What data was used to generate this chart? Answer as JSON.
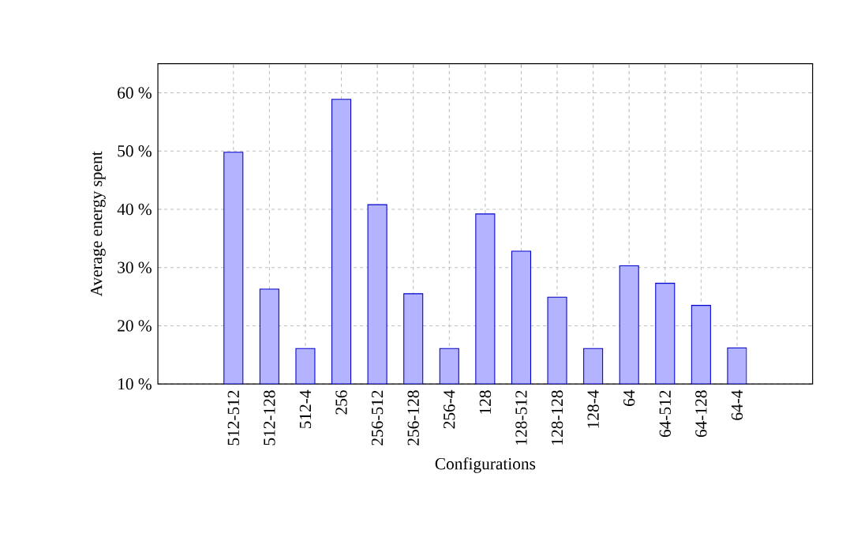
{
  "chart_data": {
    "type": "bar",
    "xlabel": "Configurations",
    "ylabel": "Average energy spent",
    "categories": [
      "512-512",
      "512-128",
      "512-4",
      "256",
      "256-512",
      "256-128",
      "256-4",
      "128",
      "128-512",
      "128-128",
      "128-4",
      "64",
      "64-512",
      "64-128",
      "64-4"
    ],
    "values": [
      49.8,
      26.3,
      16.1,
      58.9,
      40.8,
      25.5,
      16.1,
      39.2,
      32.8,
      24.9,
      16.1,
      30.3,
      27.3,
      23.5,
      16.2
    ],
    "color": "#b3b3ff",
    "ylim": [
      10,
      65
    ],
    "yticks": [
      {
        "value": 10,
        "label": "10 %"
      },
      {
        "value": 20,
        "label": "20 %"
      },
      {
        "value": 30,
        "label": "30 %"
      },
      {
        "value": 40,
        "label": "40 %"
      },
      {
        "value": 50,
        "label": "50 %"
      },
      {
        "value": 60,
        "label": "60 %"
      }
    ],
    "grid": true
  }
}
